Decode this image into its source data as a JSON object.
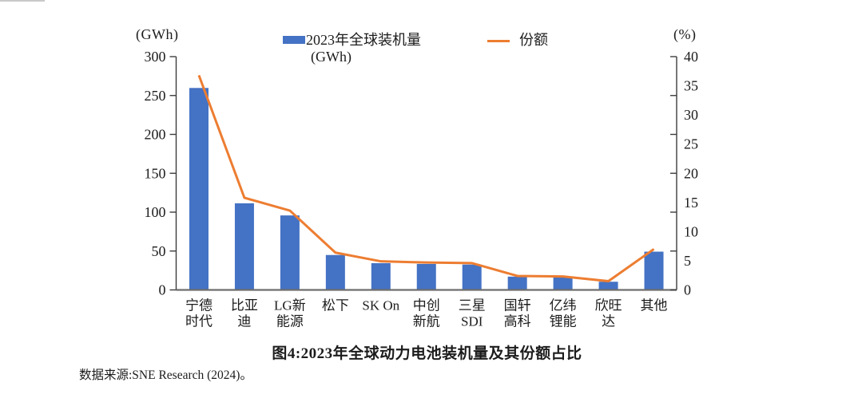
{
  "page": {
    "title": "图4:2023年全球动力电池装机量及其份额占比",
    "source": "数据来源:SNE Research (2024)。"
  },
  "axes": {
    "left_unit": "(GWh)",
    "right_unit": "(%)"
  },
  "legend": {
    "bar_label": "2023年全球装机量",
    "bar_unit": "(GWh)",
    "line_label": "份额"
  },
  "chart_data": {
    "type": "bar",
    "subtype": "bar+line combo, dual axis",
    "title": "图4:2023年全球动力电池装机量及其份额占比",
    "categories": [
      "宁德时代",
      "比亚迪",
      "LG新能源",
      "松下",
      "SK On",
      "中创新航",
      "三星SDI",
      "国轩高科",
      "亿纬锂能",
      "欣旺达",
      "其他"
    ],
    "category_label_lines": [
      [
        "宁德",
        "时代"
      ],
      [
        "比亚",
        "迪"
      ],
      [
        "LG新",
        "能源"
      ],
      [
        "松下"
      ],
      [
        "SK On"
      ],
      [
        "中创",
        "新航"
      ],
      [
        "三星",
        "SDI"
      ],
      [
        "国轩",
        "高科"
      ],
      [
        "亿纬",
        "锂能"
      ],
      [
        "欣旺",
        "达"
      ],
      [
        "其他"
      ]
    ],
    "series": [
      {
        "name": "2023年全球装机量(GWh)",
        "type": "bar",
        "color": "#4472c4",
        "axis": "left",
        "values": [
          259.7,
          111.4,
          95.8,
          44.9,
          34.4,
          33.4,
          32.6,
          17.1,
          16.2,
          10.5,
          49.2
        ]
      },
      {
        "name": "份额",
        "type": "line",
        "color": "#ed7d31",
        "axis": "right",
        "values": [
          36.8,
          15.8,
          13.6,
          6.4,
          4.9,
          4.7,
          4.6,
          2.4,
          2.3,
          1.5,
          7.0
        ]
      }
    ],
    "left_axis": {
      "label": "(GWh)",
      "min": 0,
      "max": 300,
      "ticks": [
        0,
        50,
        100,
        150,
        200,
        250,
        300
      ]
    },
    "right_axis": {
      "label": "(%)",
      "min": 0,
      "max": 40,
      "ticks": [
        0,
        5,
        10,
        15,
        20,
        25,
        30,
        35,
        40
      ]
    },
    "grid": false,
    "legend_position": "top"
  }
}
